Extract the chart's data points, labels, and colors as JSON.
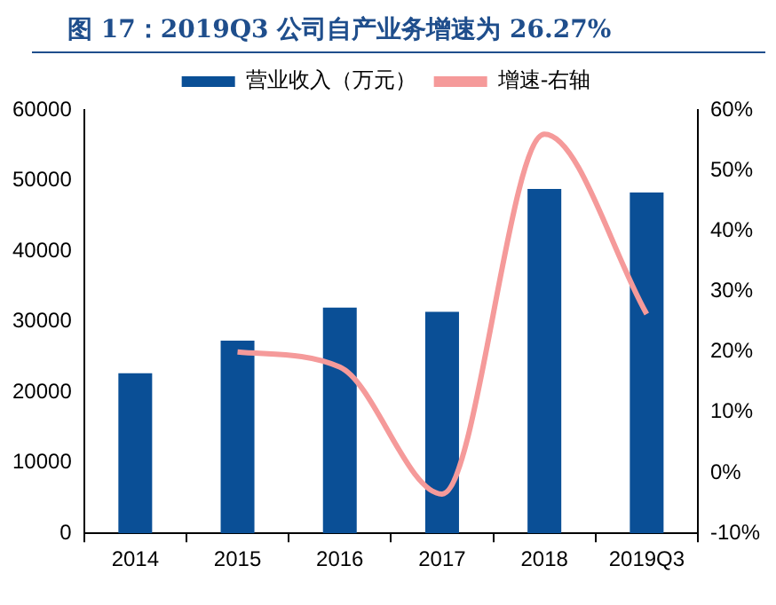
{
  "chart_data": {
    "type": "bar",
    "title": "图 17：2019Q3 公司自产业务增速为 26.27%",
    "categories": [
      "2014",
      "2015",
      "2016",
      "2017",
      "2018",
      "2019Q3"
    ],
    "series": [
      {
        "name": "营业收入（万元）",
        "color": "#0a4f96",
        "values": [
          22700,
          27300,
          32000,
          31400,
          48800,
          48300
        ]
      },
      {
        "name": "增速-右轴",
        "type": "line",
        "axis": "y2",
        "color": "#f59a9a",
        "values": [
          null,
          20,
          17.5,
          -3.5,
          56,
          26.27
        ]
      }
    ],
    "ylim": [
      0,
      60000
    ],
    "yticks": [
      0,
      10000,
      20000,
      30000,
      40000,
      50000,
      60000
    ],
    "y2lim": [
      -10,
      60
    ],
    "y2ticks": [
      {
        "value": -10,
        "label": "-10%"
      },
      {
        "value": 0,
        "label": "0%"
      },
      {
        "value": 10,
        "label": "10%"
      },
      {
        "value": 20,
        "label": "20%"
      },
      {
        "value": 30,
        "label": "30%"
      },
      {
        "value": 40,
        "label": "40%"
      },
      {
        "value": 50,
        "label": "50%"
      },
      {
        "value": 60,
        "label": "60%"
      }
    ],
    "grid": false,
    "legend": "top",
    "marker": "none"
  }
}
